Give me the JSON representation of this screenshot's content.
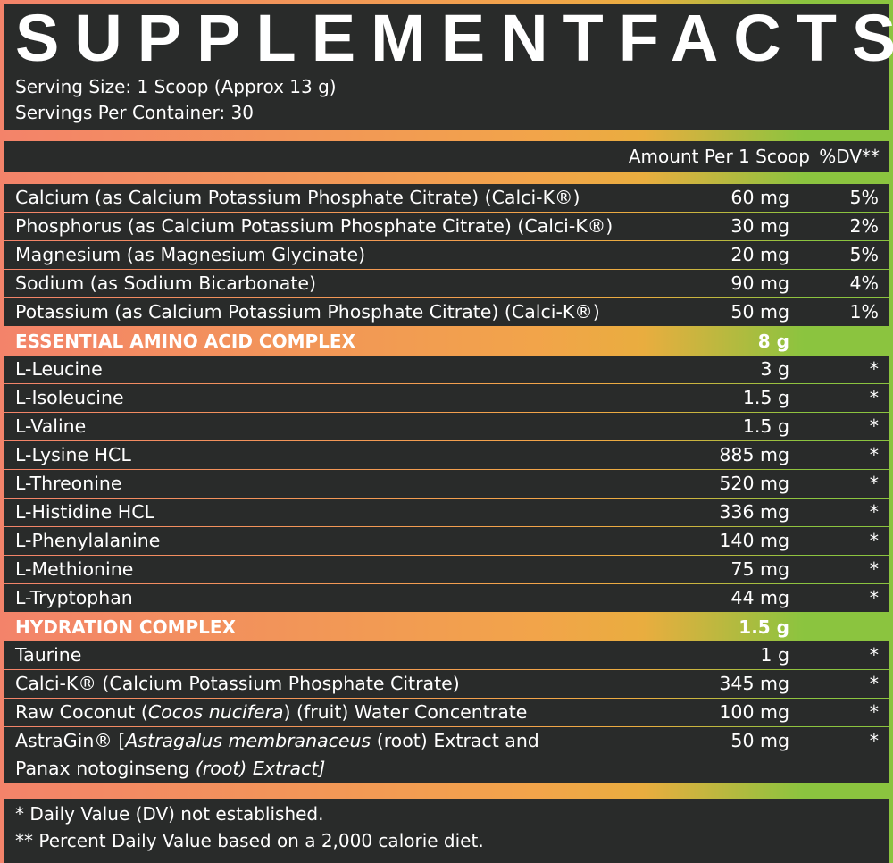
{
  "title_words": [
    "SUPPLEMENT",
    "FACTS"
  ],
  "serving_size": "Serving Size: 1 Scoop (Approx 13 g)",
  "servings_per_container": "Servings Per Container: 30",
  "header": {
    "amount": "Amount Per 1 Scoop",
    "dv": "%DV**"
  },
  "minerals": [
    {
      "name": "Calcium (as Calcium Potassium Phosphate Citrate) (Calci-K®)",
      "amount": "60 mg",
      "dv": "5%"
    },
    {
      "name": "Phosphorus (as Calcium Potassium Phosphate Citrate) (Calci-K®)",
      "amount": "30 mg",
      "dv": "2%"
    },
    {
      "name": "Magnesium (as Magnesium Glycinate)",
      "amount": "20 mg",
      "dv": "5%"
    },
    {
      "name": "Sodium (as Sodium Bicarbonate)",
      "amount": "90 mg",
      "dv": "4%"
    },
    {
      "name": "Potassium (as Calcium Potassium Phosphate Citrate) (Calci-K®)",
      "amount": "50 mg",
      "dv": "1%"
    }
  ],
  "eaa": {
    "name": "ESSENTIAL AMINO ACID COMPLEX",
    "amount": "8 g",
    "items": [
      {
        "name": "L-Leucine",
        "amount": "3 g",
        "dv": "*"
      },
      {
        "name": "L-Isoleucine",
        "amount": "1.5 g",
        "dv": "*"
      },
      {
        "name": "L-Valine",
        "amount": "1.5 g",
        "dv": "*"
      },
      {
        "name": "L-Lysine HCL",
        "amount": "885 mg",
        "dv": "*"
      },
      {
        "name": "L-Threonine",
        "amount": "520 mg",
        "dv": "*"
      },
      {
        "name": "L-Histidine HCL",
        "amount": "336 mg",
        "dv": "*"
      },
      {
        "name": "L-Phenylalanine",
        "amount": "140 mg",
        "dv": "*"
      },
      {
        "name": "L-Methionine",
        "amount": "75 mg",
        "dv": "*"
      },
      {
        "name": "L-Tryptophan",
        "amount": "44 mg",
        "dv": "*"
      }
    ]
  },
  "hydration": {
    "name": "HYDRATION COMPLEX",
    "amount": "1.5 g",
    "items": [
      {
        "name": "Taurine",
        "amount": "1 g",
        "dv": "*"
      },
      {
        "name": "Calci-K® (Calcium Potassium Phosphate Citrate)",
        "amount": "345 mg",
        "dv": "*"
      },
      {
        "name_parts": [
          "Raw Coconut (",
          "Cocos nucifera",
          ") (fruit) Water Concentrate"
        ],
        "amount": "100 mg",
        "dv": "*"
      },
      {
        "name_parts": [
          "AstraGin® [",
          "Astragalus membranaceus",
          " (root) Extract and"
        ],
        "name_line2_parts": [
          "Panax notoginseng",
          " (root) Extract]"
        ],
        "amount": "50 mg",
        "dv": "*"
      }
    ]
  },
  "footnotes": [
    "* Daily Value (DV) not established.",
    "** Percent Daily Value based on a 2,000 calorie diet."
  ],
  "colors": {
    "background": "#292b2a",
    "gradient_left": "#f3836a",
    "gradient_mid": "#f2a44a",
    "gradient_right": "#8bc43f",
    "text": "#ffffff"
  }
}
